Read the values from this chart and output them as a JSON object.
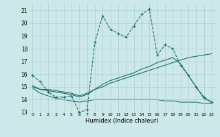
{
  "xlabel": "Humidex (Indice chaleur)",
  "xlim": [
    -0.5,
    23.5
  ],
  "ylim": [
    13,
    21.5
  ],
  "yticks": [
    13,
    14,
    15,
    16,
    17,
    18,
    19,
    20,
    21
  ],
  "xticks": [
    0,
    1,
    2,
    3,
    4,
    5,
    6,
    7,
    8,
    9,
    10,
    11,
    12,
    13,
    14,
    15,
    16,
    17,
    18,
    19,
    20,
    21,
    22,
    23
  ],
  "bg_color": "#cce8e8",
  "line_color": "#1a6e6e",
  "grid_color": "#aacfcf",
  "line1_x": [
    0,
    1,
    2,
    3,
    4,
    5,
    6,
    7,
    8,
    9,
    10,
    11,
    12,
    13,
    14,
    15,
    16,
    17,
    18,
    19,
    20,
    21,
    22,
    23
  ],
  "line1_y": [
    15.9,
    15.4,
    14.6,
    14.2,
    14.2,
    14.3,
    13.0,
    13.2,
    18.5,
    20.6,
    19.5,
    19.2,
    18.9,
    19.8,
    20.7,
    21.1,
    17.5,
    18.3,
    18.0,
    16.7,
    15.9,
    15.0,
    14.2,
    13.8
  ],
  "line2_x": [
    0,
    1,
    2,
    3,
    4,
    5,
    6,
    7,
    8,
    9,
    10,
    11,
    12,
    13,
    14,
    15,
    16,
    17,
    18,
    19,
    20,
    21,
    22,
    23
  ],
  "line2_y": [
    15.1,
    14.8,
    14.7,
    14.6,
    14.5,
    14.4,
    14.2,
    14.4,
    14.8,
    15.2,
    15.5,
    15.7,
    15.9,
    16.1,
    16.4,
    16.6,
    16.9,
    17.1,
    17.3,
    16.8,
    15.9,
    15.0,
    14.1,
    13.8
  ],
  "line3_x": [
    0,
    1,
    2,
    3,
    4,
    5,
    6,
    7,
    8,
    9,
    10,
    11,
    12,
    13,
    14,
    15,
    16,
    17,
    18,
    19,
    20,
    21,
    22,
    23
  ],
  "line3_y": [
    15.0,
    14.8,
    14.8,
    14.7,
    14.6,
    14.5,
    14.3,
    14.5,
    14.8,
    15.0,
    15.3,
    15.5,
    15.7,
    15.9,
    16.1,
    16.3,
    16.5,
    16.7,
    16.9,
    17.1,
    17.3,
    17.4,
    17.5,
    17.6
  ],
  "line4_x": [
    0,
    1,
    2,
    3,
    4,
    5,
    6,
    7,
    8,
    9,
    10,
    11,
    12,
    13,
    14,
    15,
    16,
    17,
    18,
    19,
    20,
    21,
    22,
    23
  ],
  "line4_y": [
    14.9,
    14.5,
    14.3,
    14.1,
    14.0,
    13.9,
    13.8,
    13.9,
    14.0,
    14.0,
    14.0,
    14.0,
    14.0,
    14.0,
    14.0,
    14.0,
    14.0,
    13.9,
    13.9,
    13.8,
    13.8,
    13.8,
    13.7,
    13.7
  ]
}
